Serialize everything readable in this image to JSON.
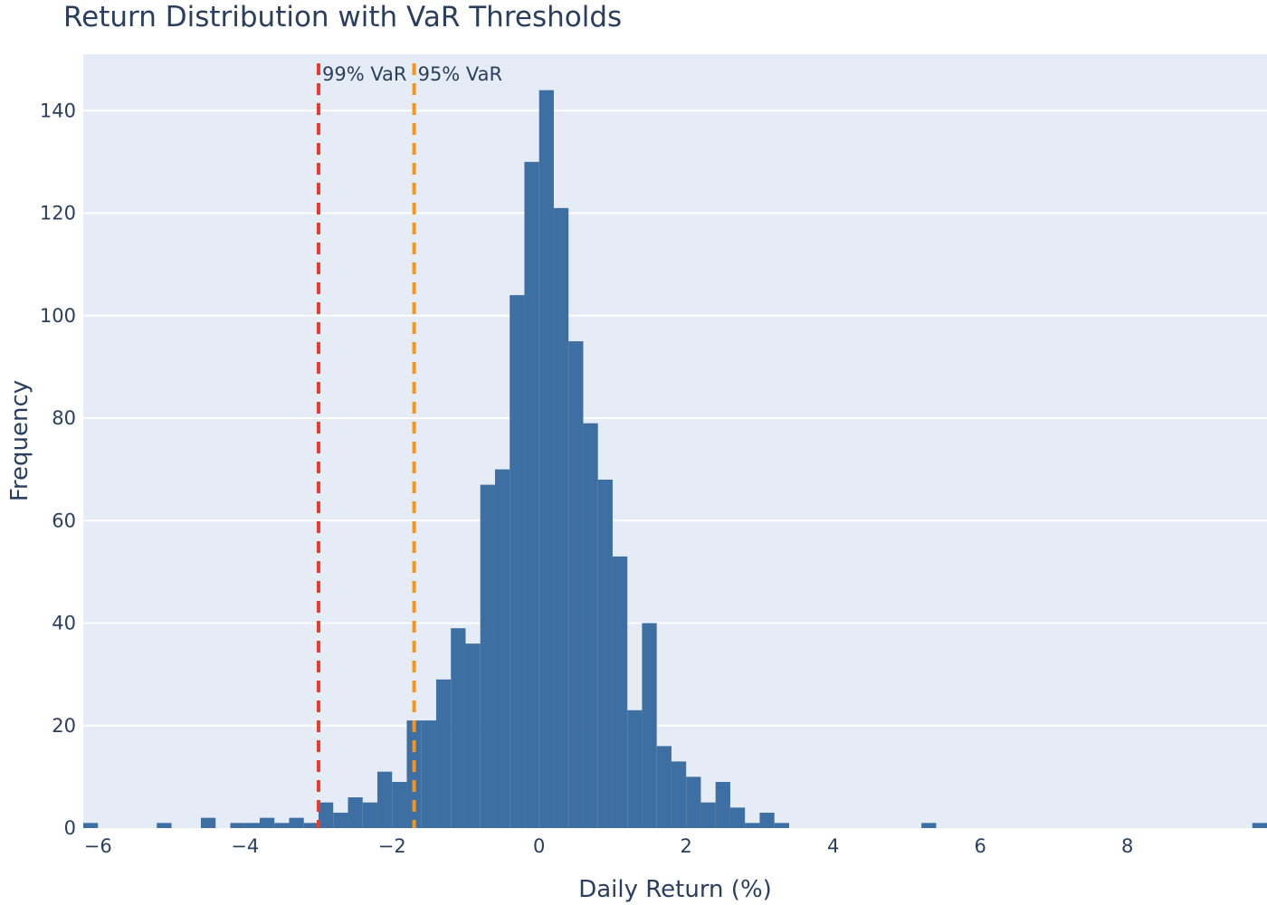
{
  "chart_data": {
    "type": "bar",
    "subtype": "histogram",
    "title": "Return Distribution with VaR Thresholds",
    "xlabel": "Daily Return (%)",
    "ylabel": "Frequency",
    "xlim": [
      -6.2,
      9.9
    ],
    "ylim": [
      0,
      151
    ],
    "bin_width": 0.2,
    "x_ticks": [
      -6,
      -4,
      -2,
      0,
      2,
      4,
      6,
      8
    ],
    "x_tick_labels": [
      "−6",
      "−4",
      "−2",
      "0",
      "2",
      "4",
      "6",
      "8"
    ],
    "y_ticks": [
      0,
      20,
      40,
      60,
      80,
      100,
      120,
      140
    ],
    "y_tick_labels": [
      "0",
      "20",
      "40",
      "60",
      "80",
      "100",
      "120",
      "140"
    ],
    "grid": true,
    "bar_color": "#3e6fa3",
    "plot_bg": "#e5ecf6",
    "bins": [
      {
        "x0": -6.2,
        "count": 1
      },
      {
        "x0": -5.2,
        "count": 1
      },
      {
        "x0": -4.6,
        "count": 2
      },
      {
        "x0": -4.2,
        "count": 1
      },
      {
        "x0": -4.0,
        "count": 1
      },
      {
        "x0": -3.8,
        "count": 2
      },
      {
        "x0": -3.6,
        "count": 1
      },
      {
        "x0": -3.4,
        "count": 2
      },
      {
        "x0": -3.2,
        "count": 1
      },
      {
        "x0": -3.0,
        "count": 5
      },
      {
        "x0": -2.8,
        "count": 3
      },
      {
        "x0": -2.6,
        "count": 6
      },
      {
        "x0": -2.4,
        "count": 5
      },
      {
        "x0": -2.2,
        "count": 11
      },
      {
        "x0": -2.0,
        "count": 9
      },
      {
        "x0": -1.8,
        "count": 21
      },
      {
        "x0": -1.6,
        "count": 21
      },
      {
        "x0": -1.4,
        "count": 29
      },
      {
        "x0": -1.2,
        "count": 39
      },
      {
        "x0": -1.0,
        "count": 36
      },
      {
        "x0": -0.8,
        "count": 67
      },
      {
        "x0": -0.6,
        "count": 70
      },
      {
        "x0": -0.4,
        "count": 104
      },
      {
        "x0": -0.2,
        "count": 130
      },
      {
        "x0": 0.0,
        "count": 144
      },
      {
        "x0": 0.2,
        "count": 121
      },
      {
        "x0": 0.4,
        "count": 95
      },
      {
        "x0": 0.6,
        "count": 79
      },
      {
        "x0": 0.8,
        "count": 68
      },
      {
        "x0": 1.0,
        "count": 53
      },
      {
        "x0": 1.2,
        "count": 23
      },
      {
        "x0": 1.4,
        "count": 40
      },
      {
        "x0": 1.6,
        "count": 16
      },
      {
        "x0": 1.8,
        "count": 13
      },
      {
        "x0": 2.0,
        "count": 10
      },
      {
        "x0": 2.2,
        "count": 5
      },
      {
        "x0": 2.4,
        "count": 9
      },
      {
        "x0": 2.6,
        "count": 4
      },
      {
        "x0": 2.8,
        "count": 1
      },
      {
        "x0": 3.0,
        "count": 3
      },
      {
        "x0": 3.2,
        "count": 1
      },
      {
        "x0": 5.2,
        "count": 1
      },
      {
        "x0": 9.7,
        "count": 1
      }
    ],
    "thresholds": [
      {
        "label": "99% VaR",
        "x": -3.0,
        "color": "#e53e2f"
      },
      {
        "label": "95% VaR",
        "x": -1.7,
        "color": "#f7941d"
      }
    ]
  }
}
